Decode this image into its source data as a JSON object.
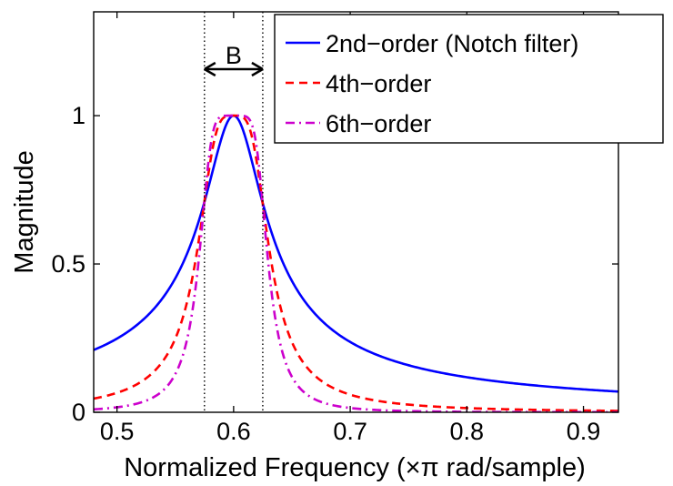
{
  "chart_data": {
    "type": "line",
    "title": "",
    "xlabel": "Normalized Frequency (×π rad/sample)",
    "ylabel": "Magnitude",
    "xlim": [
      0.48,
      0.93
    ],
    "ylim": [
      0,
      1.35
    ],
    "xticks": [
      0.5,
      0.6,
      0.7,
      0.8,
      0.9
    ],
    "xtick_labels": [
      "0.5",
      "0.6",
      "0.7",
      "0.8",
      "0.9"
    ],
    "yticks": [
      0,
      0.5,
      1
    ],
    "ytick_labels": [
      "0",
      "0.5",
      "1"
    ],
    "grid": false,
    "legend_position": "top-right",
    "center_frequency": 0.6,
    "bandwidth_edges": [
      0.575,
      0.625
    ],
    "annotation": "B",
    "series": [
      {
        "name": "2nd−order (Notch filter)",
        "color": "#0000ff",
        "style": "solid",
        "x": [
          0.48,
          0.5,
          0.52,
          0.54,
          0.56,
          0.575,
          0.59,
          0.6,
          0.61,
          0.625,
          0.64,
          0.66,
          0.7,
          0.75,
          0.8,
          0.85,
          0.9,
          0.93
        ],
        "values": [
          0.2,
          0.24,
          0.3,
          0.39,
          0.53,
          0.71,
          0.93,
          1.0,
          0.93,
          0.71,
          0.53,
          0.39,
          0.24,
          0.15,
          0.1,
          0.07,
          0.04,
          0.02
        ]
      },
      {
        "name": "4th−order",
        "color": "#ff0000",
        "style": "dashed",
        "x": [
          0.48,
          0.5,
          0.52,
          0.54,
          0.56,
          0.575,
          0.59,
          0.6,
          0.61,
          0.625,
          0.64,
          0.66,
          0.7,
          0.75,
          0.8,
          0.85,
          0.9,
          0.93
        ],
        "values": [
          0.04,
          0.06,
          0.09,
          0.15,
          0.3,
          0.71,
          0.99,
          1.0,
          0.99,
          0.71,
          0.3,
          0.15,
          0.06,
          0.02,
          0.01,
          0.005,
          0.003,
          0.002
        ]
      },
      {
        "name": "6th−order",
        "color": "#cc00cc",
        "style": "dashdot",
        "x": [
          0.48,
          0.5,
          0.52,
          0.54,
          0.56,
          0.575,
          0.59,
          0.6,
          0.61,
          0.625,
          0.64,
          0.66,
          0.7,
          0.75,
          0.8,
          0.85,
          0.9,
          0.93
        ],
        "values": [
          0.01,
          0.02,
          0.03,
          0.06,
          0.16,
          0.71,
          1.0,
          1.0,
          1.0,
          0.71,
          0.16,
          0.06,
          0.02,
          0.003,
          0.001,
          0.0,
          0.0,
          0.0
        ]
      }
    ]
  }
}
